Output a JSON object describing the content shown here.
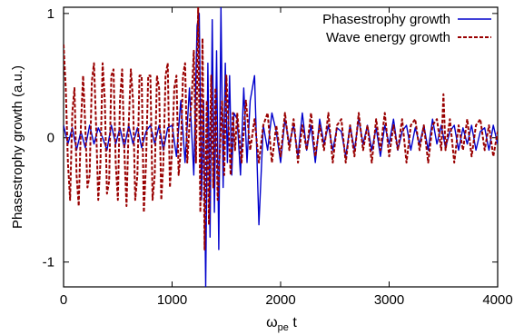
{
  "chart_data": {
    "type": "line",
    "title": "",
    "xlabel_main": "ω",
    "xlabel_sub": "pe",
    "xlabel_tail": " t",
    "ylabel": "Phasestrophy growth (a.u.)",
    "xlim": [
      0,
      4000
    ],
    "ylim": [
      -1.2,
      1.05
    ],
    "xticks": [
      0,
      1000,
      2000,
      3000,
      4000
    ],
    "xtick_labels": [
      "0",
      "1000",
      "2000",
      "3000",
      "4000"
    ],
    "yticks": [
      -1,
      0,
      1
    ],
    "ytick_labels": [
      "-1",
      "0",
      "1"
    ],
    "grid": false,
    "legend_position": "top-right",
    "series": [
      {
        "name": "Phasestrophy growth",
        "color": "#0000cc",
        "style": "solid",
        "x": [
          0,
          40,
          80,
          120,
          160,
          200,
          240,
          280,
          320,
          360,
          400,
          440,
          480,
          520,
          560,
          600,
          640,
          680,
          720,
          760,
          800,
          840,
          880,
          920,
          960,
          1000,
          1040,
          1080,
          1120,
          1160,
          1200,
          1230,
          1250,
          1270,
          1290,
          1310,
          1330,
          1350,
          1370,
          1390,
          1410,
          1430,
          1450,
          1470,
          1490,
          1510,
          1530,
          1550,
          1570,
          1600,
          1630,
          1660,
          1690,
          1720,
          1760,
          1800,
          1840,
          1880,
          1920,
          1960,
          2000,
          2040,
          2080,
          2120,
          2160,
          2200,
          2240,
          2280,
          2320,
          2360,
          2400,
          2440,
          2480,
          2520,
          2560,
          2600,
          2640,
          2680,
          2720,
          2760,
          2800,
          2840,
          2880,
          2920,
          2960,
          3000,
          3040,
          3080,
          3120,
          3160,
          3200,
          3240,
          3280,
          3320,
          3360,
          3400,
          3440,
          3480,
          3520,
          3560,
          3600,
          3640,
          3680,
          3720,
          3760,
          3800,
          3840,
          3880,
          3920,
          3960,
          4000
        ],
        "y": [
          0.1,
          -0.05,
          0.08,
          -0.1,
          0.05,
          -0.08,
          0.1,
          -0.05,
          0.08,
          0.0,
          -0.1,
          0.1,
          -0.05,
          0.08,
          -0.08,
          0.1,
          -0.05,
          0.08,
          -0.08,
          0.05,
          0.1,
          -0.05,
          0.1,
          -0.1,
          0.08,
          0.1,
          -0.15,
          0.3,
          -0.2,
          0.4,
          -0.3,
          0.9,
          1.0,
          -0.5,
          0.3,
          -1.2,
          0.6,
          -0.8,
          0.95,
          -0.6,
          0.7,
          -0.9,
          1.05,
          -0.4,
          0.6,
          -0.2,
          0.5,
          -0.3,
          0.2,
          0.15,
          -0.3,
          0.4,
          -0.2,
          0.3,
          0.5,
          -0.7,
          0.1,
          -0.1,
          0.2,
          0.05,
          -0.2,
          0.15,
          -0.05,
          0.1,
          -0.15,
          0.2,
          -0.1,
          0.1,
          -0.2,
          0.15,
          -0.05,
          0.1,
          -0.1,
          0.08,
          0.05,
          -0.15,
          0.1,
          -0.1,
          0.15,
          -0.05,
          0.1,
          -0.1,
          0.08,
          -0.15,
          0.1,
          -0.05,
          0.15,
          -0.1,
          0.05,
          0.1,
          -0.1,
          0.08,
          -0.05,
          0.1,
          -0.1,
          0.15,
          -0.05,
          0.1,
          -0.08,
          0.05,
          0.1,
          -0.1,
          0.08,
          -0.05,
          0.1,
          -0.1,
          0.05,
          0.08,
          -0.1,
          0.1,
          -0.05
        ]
      },
      {
        "name": "Wave energy growth",
        "color": "#990000",
        "style": "dashed",
        "x": [
          0,
          20,
          40,
          60,
          80,
          100,
          120,
          140,
          160,
          180,
          200,
          220,
          240,
          260,
          280,
          300,
          320,
          340,
          360,
          380,
          400,
          420,
          440,
          460,
          480,
          500,
          520,
          540,
          560,
          580,
          600,
          620,
          640,
          660,
          680,
          700,
          720,
          740,
          760,
          780,
          800,
          820,
          840,
          860,
          880,
          900,
          920,
          940,
          960,
          980,
          1000,
          1020,
          1040,
          1060,
          1080,
          1100,
          1120,
          1140,
          1160,
          1180,
          1200,
          1220,
          1240,
          1260,
          1280,
          1300,
          1320,
          1340,
          1360,
          1380,
          1400,
          1420,
          1440,
          1460,
          1480,
          1500,
          1520,
          1540,
          1560,
          1580,
          1600,
          1640,
          1680,
          1720,
          1760,
          1800,
          1840,
          1880,
          1920,
          1960,
          2000,
          2040,
          2080,
          2120,
          2160,
          2200,
          2240,
          2280,
          2320,
          2360,
          2400,
          2440,
          2480,
          2520,
          2560,
          2600,
          2640,
          2680,
          2720,
          2760,
          2800,
          2840,
          2880,
          2920,
          2960,
          3000,
          3040,
          3080,
          3120,
          3160,
          3200,
          3240,
          3280,
          3320,
          3360,
          3400,
          3440,
          3480,
          3500,
          3520,
          3560,
          3600,
          3640,
          3680,
          3720,
          3760,
          3800,
          3840,
          3880,
          3920,
          3960,
          4000
        ],
        "y": [
          0.75,
          0.4,
          -0.2,
          -0.5,
          0.2,
          0.4,
          -0.3,
          -0.55,
          0.1,
          0.5,
          0.1,
          -0.4,
          -0.3,
          0.45,
          0.6,
          0.1,
          -0.5,
          -0.2,
          0.6,
          0.3,
          -0.45,
          -0.35,
          0.5,
          0.55,
          -0.2,
          -0.5,
          0.3,
          0.55,
          -0.1,
          -0.55,
          0.1,
          0.55,
          0.3,
          -0.5,
          -0.3,
          0.5,
          0.5,
          -0.6,
          -0.2,
          0.5,
          0.5,
          -0.5,
          -0.3,
          0.5,
          0.4,
          -0.5,
          -0.2,
          0.5,
          0.6,
          -0.4,
          -0.1,
          0.4,
          0.5,
          -0.3,
          -0.1,
          0.5,
          0.6,
          -0.2,
          0.1,
          0.3,
          0.7,
          -0.2,
          1.05,
          -0.6,
          0.8,
          -0.9,
          0.3,
          -0.7,
          0.5,
          -0.4,
          0.4,
          -0.5,
          -0.1,
          0.3,
          -0.3,
          0.5,
          0.1,
          -0.3,
          0.2,
          -0.1,
          0.2,
          -0.2,
          0.3,
          -0.1,
          0.15,
          -0.2,
          0.1,
          0.2,
          -0.2,
          0.1,
          -0.15,
          0.2,
          -0.1,
          0.15,
          -0.2,
          0.1,
          -0.1,
          0.2,
          -0.15,
          0.1,
          -0.1,
          0.2,
          -0.2,
          0.1,
          0.15,
          -0.2,
          0.1,
          -0.15,
          0.2,
          -0.1,
          0.1,
          -0.2,
          0.15,
          -0.1,
          0.2,
          -0.15,
          0.1,
          -0.1,
          0.15,
          -0.2,
          0.1,
          0.15,
          -0.1,
          0.1,
          -0.2,
          0.1,
          0.15,
          -0.1,
          0.35,
          -0.1,
          0.15,
          -0.2,
          0.1,
          -0.1,
          0.15,
          -0.15,
          0.1,
          0.15,
          -0.1,
          0.1,
          -0.15,
          0.05
        ]
      }
    ]
  }
}
